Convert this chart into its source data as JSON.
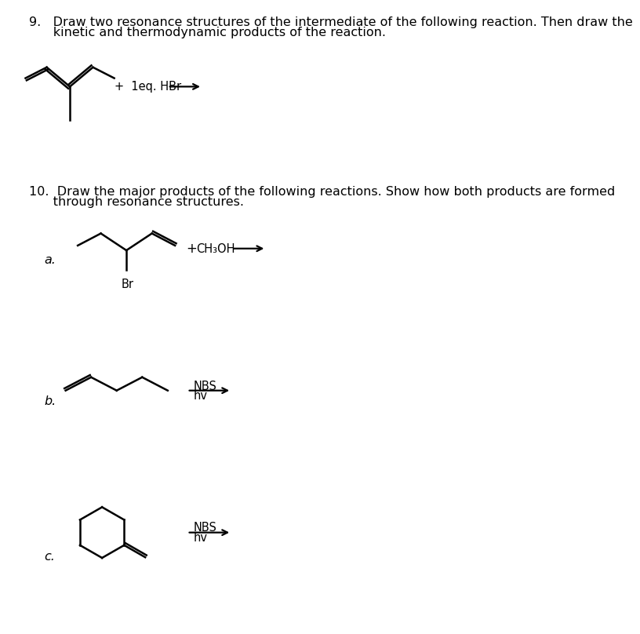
{
  "bg_color": "#ffffff",
  "text_color": "#000000",
  "q9_line1": "9.   Draw two resonance structures of the intermediate of the following reaction. Then draw the",
  "q9_line2": "      kinetic and thermodynamic products of the reaction.",
  "q10_line1": "10.  Draw the major products of the following reactions. Show how both products are formed",
  "q10_line2": "      through resonance structures.",
  "label_a": "a.",
  "label_b": "b.",
  "label_c": "c.",
  "plus_q9": "+  1eq. HBr",
  "plus_a": "+",
  "ch3oh": "CH₃OH",
  "nbs": "NBS",
  "hv": "hv",
  "br": "Br"
}
